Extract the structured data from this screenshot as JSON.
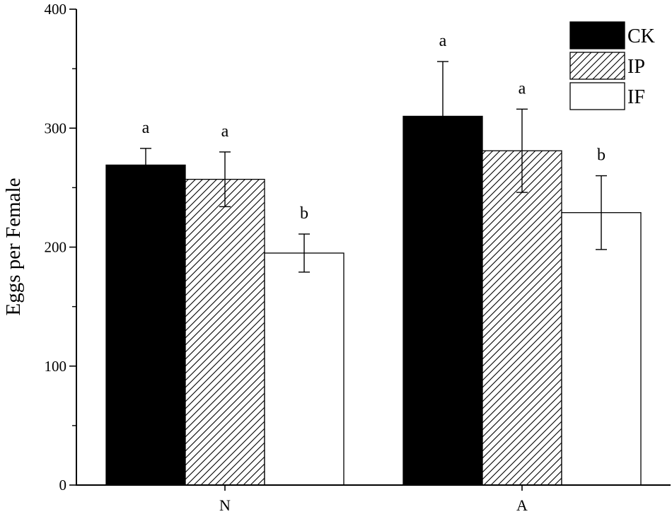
{
  "chart_data": {
    "type": "bar",
    "title": "",
    "xlabel": "",
    "ylabel": "Eggs per Female",
    "ylim": [
      0,
      400
    ],
    "yticks": [
      0,
      100,
      200,
      300,
      400
    ],
    "categories": [
      "N",
      "A"
    ],
    "grid": false,
    "legend_position": "top-right",
    "series": [
      {
        "name": "CK",
        "fill": "solid-black",
        "color": "#000000",
        "values": [
          269,
          310
        ],
        "errors": [
          14,
          46
        ],
        "sig_letters": [
          "a",
          "a"
        ]
      },
      {
        "name": "IP",
        "fill": "diagonal-hatch",
        "color": "#000000",
        "values": [
          257,
          281
        ],
        "errors": [
          23,
          35
        ],
        "sig_letters": [
          "a",
          "a"
        ]
      },
      {
        "name": "IF",
        "fill": "white",
        "color": "#ffffff",
        "values": [
          195,
          229
        ],
        "errors": [
          16,
          31
        ],
        "sig_letters": [
          "b",
          "b"
        ]
      }
    ]
  }
}
